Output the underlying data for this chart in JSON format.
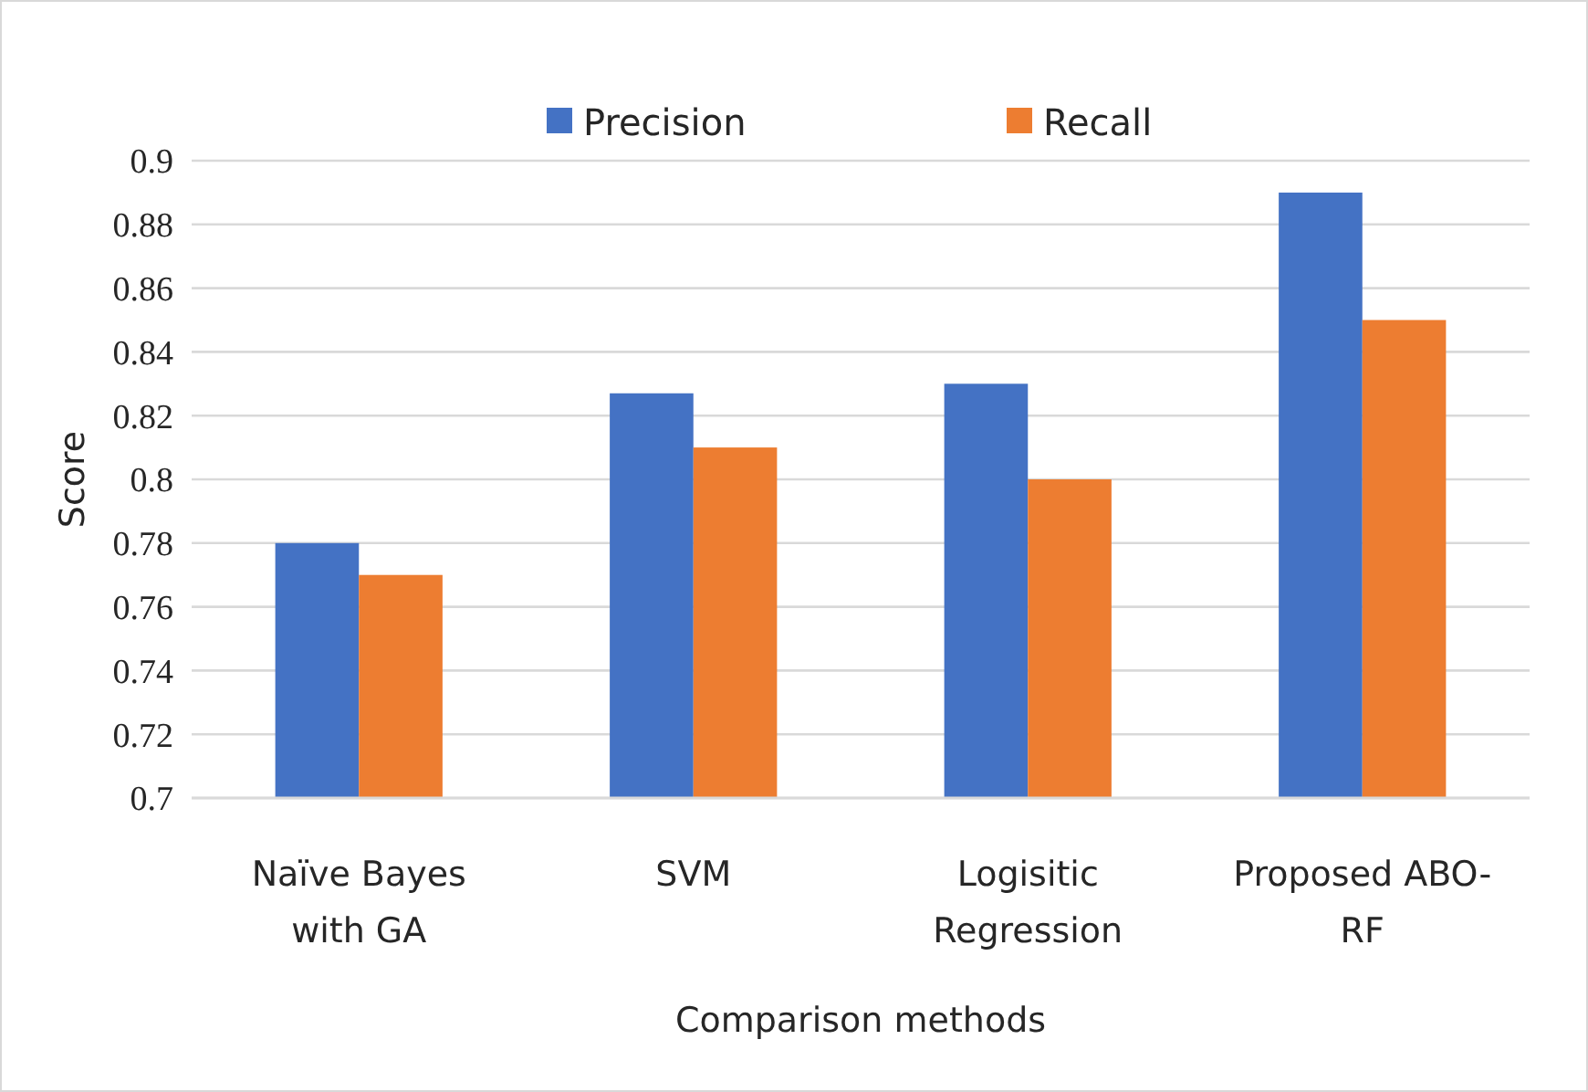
{
  "chart_data": {
    "type": "bar",
    "xlabel": "Comparison methods",
    "ylabel": "Score",
    "categories": [
      "Naïve Bayes with GA",
      "SVM",
      "Logisitic Regression",
      "Proposed ABO-RF"
    ],
    "series": [
      {
        "name": "Precision",
        "color": "#4472c4",
        "values": [
          0.78,
          0.827,
          0.83,
          0.89
        ]
      },
      {
        "name": "Recall",
        "color": "#ed7d31",
        "values": [
          0.77,
          0.81,
          0.8,
          0.85
        ]
      }
    ],
    "ylim": [
      0.7,
      0.9
    ],
    "yticks": [
      0.7,
      0.72,
      0.74,
      0.76,
      0.78,
      0.8,
      0.82,
      0.84,
      0.86,
      0.88,
      0.9
    ],
    "grid": "y",
    "legend": "top"
  }
}
